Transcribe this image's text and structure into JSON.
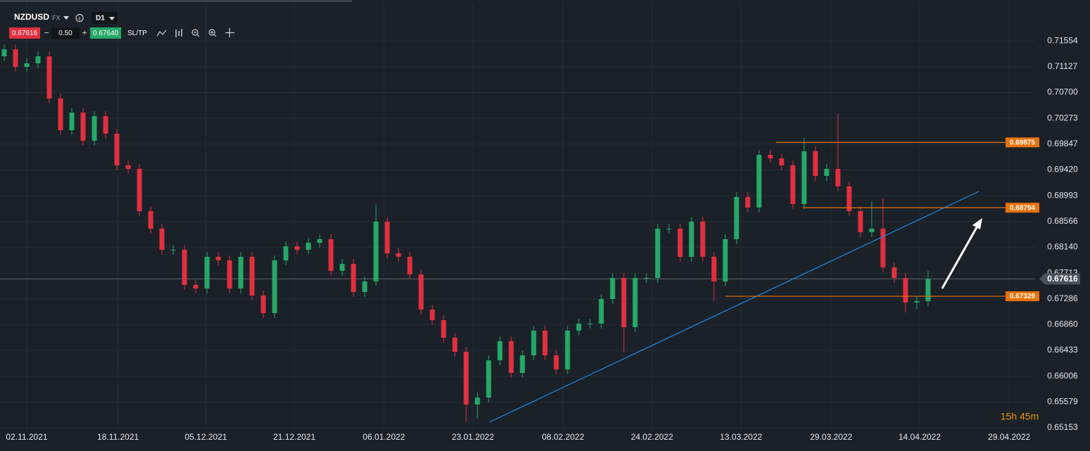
{
  "header": {
    "symbol": "NZDUSD",
    "market": "FX",
    "timeframe": "D1",
    "bid": "0.67616",
    "lot": "0.50",
    "ask": "0.67640",
    "sltp": "SL/TP",
    "minus": "−",
    "plus": "+"
  },
  "chart_data": {
    "type": "candlestick",
    "open": [
      0.713,
      0.71415,
      0.71124,
      0.71183,
      0.71299,
      0.70601,
      0.70077,
      0.70368,
      0.69902,
      0.7031,
      0.70019,
      0.69495,
      0.69437,
      0.68738,
      0.68447,
      0.68098,
      0.68098,
      0.67516,
      0.67458,
      0.67982,
      0.67923,
      0.67458,
      0.67982,
      0.67341,
      0.6705,
      0.67923,
      0.68156,
      0.68098,
      0.68214,
      0.68273,
      0.67749,
      0.67865,
      0.674,
      0.67574,
      0.68564,
      0.6804,
      0.67982,
      0.6769,
      0.67109,
      0.66934,
      0.66643,
      0.6641,
      0.65537,
      0.65654,
      0.6627,
      0.66585,
      0.66061,
      0.66352,
      0.6676,
      0.66352,
      0.66119,
      0.6676,
      0.66876,
      0.66876,
      0.67283,
      0.67632,
      0.66818,
      0.67632,
      0.67632,
      0.68447,
      0.68447,
      0.67982,
      0.68564,
      0.67982,
      0.67574,
      0.68273,
      0.68971,
      0.68796,
      0.69669,
      0.69611,
      0.69495,
      0.68855,
      0.69728,
      0.6932,
      0.69437,
      0.69146,
      0.68738,
      0.68389,
      0.68447,
      0.67807,
      0.67632,
      0.67225,
      0.67248
    ],
    "high": [
      0.71495,
      0.71495,
      0.71263,
      0.71379,
      0.71379,
      0.70681,
      0.70448,
      0.70448,
      0.7039,
      0.7039,
      0.70099,
      0.69575,
      0.69517,
      0.68818,
      0.68527,
      0.68178,
      0.68178,
      0.67596,
      0.68062,
      0.68062,
      0.68003,
      0.68062,
      0.68062,
      0.67421,
      0.68003,
      0.68236,
      0.68236,
      0.68294,
      0.68353,
      0.68353,
      0.67945,
      0.67945,
      0.67654,
      0.6885,
      0.68644,
      0.6812,
      0.68062,
      0.6777,
      0.67189,
      0.67014,
      0.66723,
      0.6649,
      0.65734,
      0.6635,
      0.66665,
      0.66665,
      0.66432,
      0.6684,
      0.6684,
      0.66432,
      0.6684,
      0.66956,
      0.66956,
      0.67363,
      0.67712,
      0.67712,
      0.67712,
      0.67712,
      0.68527,
      0.68527,
      0.68527,
      0.68644,
      0.68644,
      0.68062,
      0.68353,
      0.69051,
      0.69051,
      0.69749,
      0.69749,
      0.69691,
      0.69575,
      0.6995,
      0.69808,
      0.69517,
      0.7035,
      0.69226,
      0.68818,
      0.689,
      0.6895,
      0.67887,
      0.67712,
      0.67328,
      0.6775
    ],
    "low": [
      0.7122,
      0.71044,
      0.71044,
      0.71103,
      0.70521,
      0.69997,
      0.69997,
      0.69822,
      0.69822,
      0.69939,
      0.69415,
      0.69357,
      0.68658,
      0.68367,
      0.68018,
      0.68018,
      0.67436,
      0.67378,
      0.67378,
      0.67843,
      0.67378,
      0.67378,
      0.67261,
      0.6697,
      0.6697,
      0.67843,
      0.68018,
      0.68018,
      0.68134,
      0.67669,
      0.67669,
      0.6732,
      0.6732,
      0.67494,
      0.6796,
      0.67902,
      0.6761,
      0.67029,
      0.66854,
      0.66563,
      0.6633,
      0.6525,
      0.653,
      0.65574,
      0.6619,
      0.65981,
      0.65981,
      0.66272,
      0.66272,
      0.66039,
      0.66039,
      0.6668,
      0.66796,
      0.66796,
      0.67203,
      0.664,
      0.66738,
      0.67552,
      0.67552,
      0.68367,
      0.67902,
      0.67902,
      0.67902,
      0.6725,
      0.67494,
      0.68193,
      0.68716,
      0.68716,
      0.69531,
      0.69415,
      0.68775,
      0.68775,
      0.6924,
      0.6924,
      0.69066,
      0.68658,
      0.68309,
      0.68309,
      0.67727,
      0.67552,
      0.6706,
      0.6712,
      0.67168
    ],
    "close": [
      0.71415,
      0.71124,
      0.71183,
      0.71299,
      0.70601,
      0.70077,
      0.70368,
      0.69902,
      0.7031,
      0.70019,
      0.69495,
      0.69437,
      0.68738,
      0.68447,
      0.68098,
      0.68098,
      0.67516,
      0.67458,
      0.67982,
      0.67923,
      0.67458,
      0.67982,
      0.67341,
      0.6705,
      0.67923,
      0.68156,
      0.68098,
      0.68214,
      0.68273,
      0.67749,
      0.67865,
      0.674,
      0.67574,
      0.68564,
      0.6804,
      0.67982,
      0.6769,
      0.67109,
      0.66934,
      0.66643,
      0.6641,
      0.65537,
      0.65654,
      0.6627,
      0.66585,
      0.66061,
      0.66352,
      0.6676,
      0.66352,
      0.66119,
      0.6676,
      0.66876,
      0.66876,
      0.67283,
      0.67632,
      0.66818,
      0.67632,
      0.67632,
      0.68447,
      0.68447,
      0.67982,
      0.68564,
      0.67982,
      0.67574,
      0.68273,
      0.68971,
      0.68796,
      0.69669,
      0.69611,
      0.69495,
      0.68855,
      0.69728,
      0.6932,
      0.69437,
      0.69146,
      0.68738,
      0.68389,
      0.68447,
      0.67807,
      0.67632,
      0.67225,
      0.67248,
      0.67616
    ],
    "up_color": "#26a869",
    "down_color": "#e0303f",
    "ylim": [
      0.65118,
      0.72184
    ],
    "yticks": [
      {
        "value": 0.71554,
        "label": "0.71554"
      },
      {
        "value": 0.71127,
        "label": "0.71127"
      },
      {
        "value": 0.707,
        "label": "0.70700"
      },
      {
        "value": 0.70273,
        "label": "0.70273"
      },
      {
        "value": 0.69847,
        "label": "0.69847"
      },
      {
        "value": 0.6942,
        "label": "0.69420"
      },
      {
        "value": 0.68993,
        "label": "0.68993"
      },
      {
        "value": 0.68566,
        "label": "0.68566"
      },
      {
        "value": 0.6814,
        "label": "0.68140"
      },
      {
        "value": 0.67713,
        "label": "0.67713"
      },
      {
        "value": 0.67286,
        "label": "0.67286"
      },
      {
        "value": 0.6686,
        "label": "0.66860"
      },
      {
        "value": 0.66433,
        "label": "0.66433"
      },
      {
        "value": 0.66006,
        "label": "0.66006"
      },
      {
        "value": 0.65579,
        "label": "0.65579"
      },
      {
        "value": 0.65153,
        "label": "0.65153"
      }
    ],
    "xlim": [
      -0.375,
      91.5
    ],
    "xticks": [
      {
        "value": 2,
        "label": "02.11.2021"
      },
      {
        "value": 10.1,
        "label": "18.11.2021"
      },
      {
        "value": 17.9,
        "label": "05.12.2021"
      },
      {
        "value": 25.75,
        "label": "21.12.2021"
      },
      {
        "value": 33.7,
        "label": "06.01.2022"
      },
      {
        "value": 41.6,
        "label": "23.01.2022"
      },
      {
        "value": 49.6,
        "label": "08.02.2022"
      },
      {
        "value": 57.5,
        "label": "24.02.2022"
      },
      {
        "value": 65.4,
        "label": "13.03.2022"
      },
      {
        "value": 73.4,
        "label": "29.03.2022"
      },
      {
        "value": 81.25,
        "label": "14.04.2022"
      },
      {
        "value": 89.2,
        "label": "29.04.2022"
      }
    ],
    "grid": true,
    "current_price": {
      "value": 0.67616,
      "label": "0.67616"
    },
    "levels": [
      {
        "start": 68.5,
        "value": 0.69875,
        "label": "0.69875"
      },
      {
        "start": 70.9,
        "value": 0.68794,
        "label": "0.68794"
      },
      {
        "start": 64,
        "value": 0.67329,
        "label": "0.67329"
      }
    ],
    "trendline": {
      "x": [
        43.06,
        86.5
      ],
      "values": [
        0.65246,
        0.69063
      ],
      "color": "#1e88e5"
    },
    "level_color": "#e8720c",
    "timer": "15h 45m"
  }
}
